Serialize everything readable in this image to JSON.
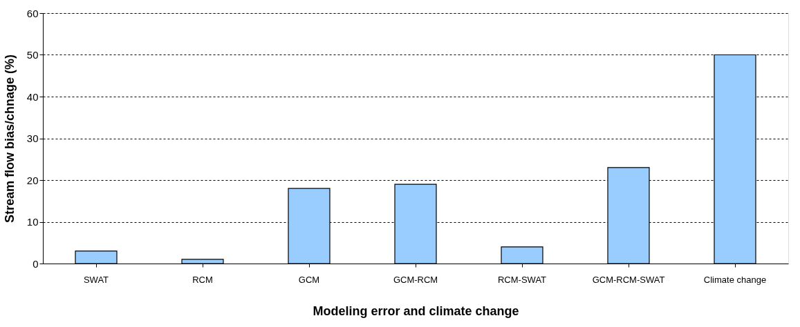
{
  "chart_data": {
    "type": "bar",
    "xlabel": "Modeling error and climate change",
    "ylabel": "Stream flow bias/chnage (%)",
    "categories": [
      "SWAT",
      "RCM",
      "GCM",
      "GCM-RCM",
      "RCM-SWAT",
      "GCM-RCM-SWAT",
      "Climate change"
    ],
    "values": [
      3,
      1,
      18,
      19,
      4,
      23,
      50
    ],
    "color": "#99ccff",
    "ylim": [
      0,
      60
    ],
    "yticks": [
      0,
      10,
      20,
      30,
      40,
      50,
      60
    ],
    "grid": "y"
  }
}
